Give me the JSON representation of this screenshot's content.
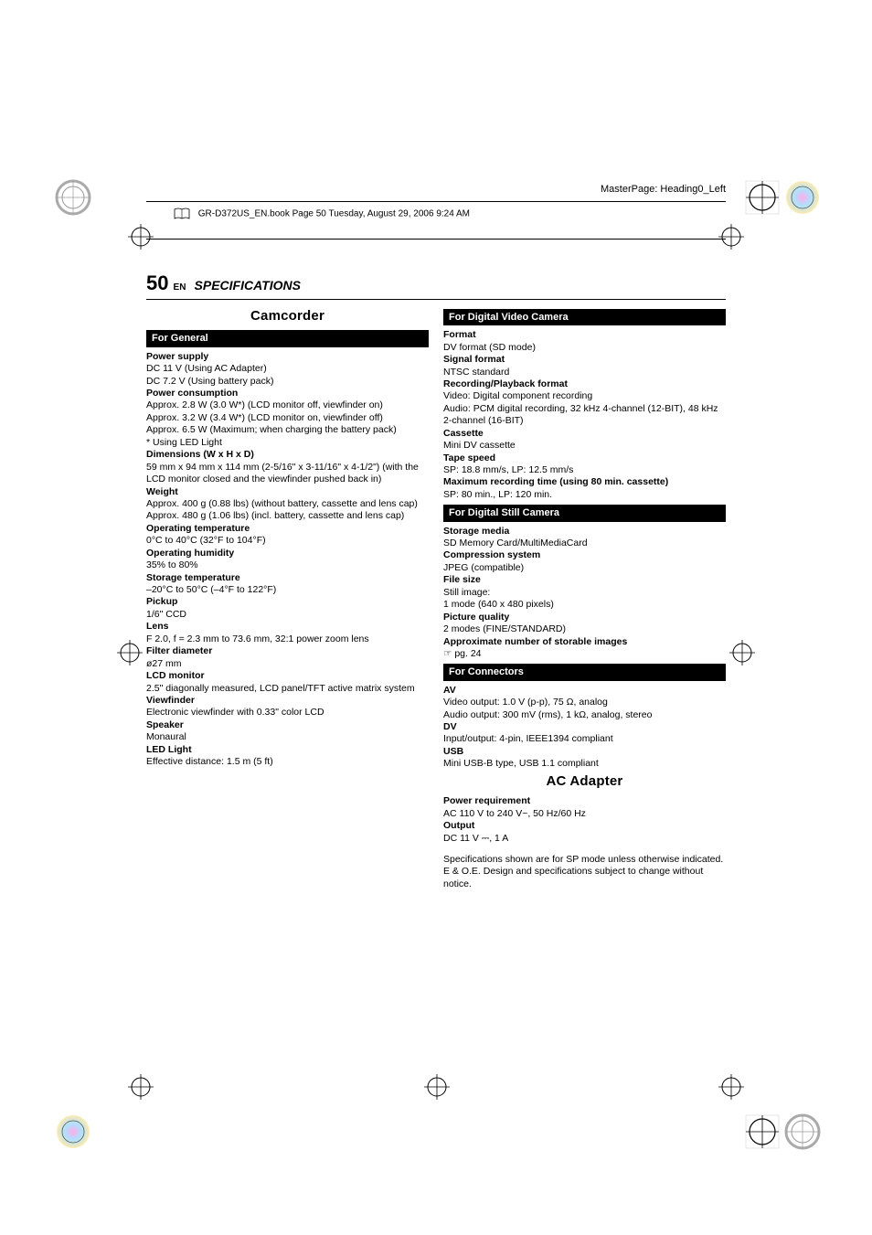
{
  "masterPage": "MasterPage: Heading0_Left",
  "bookInfo": "GR-D372US_EN.book  Page 50  Tuesday, August 29, 2006  9:24 AM",
  "pageNumber": "50",
  "pageLang": "EN",
  "pageTitle": "SPECIFICATIONS",
  "camcorder": {
    "heading": "Camcorder",
    "general": {
      "bar": "For General",
      "items": [
        {
          "label": "Power supply",
          "lines": [
            "DC 11 V (Using AC Adapter)",
            "DC 7.2 V (Using battery pack)"
          ]
        },
        {
          "label": "Power consumption",
          "lines": [
            "Approx. 2.8 W (3.0 W*) (LCD monitor off, viewfinder on)",
            "Approx. 3.2 W (3.4 W*) (LCD monitor on, viewfinder off)",
            "Approx. 6.5 W (Maximum; when charging the battery pack)",
            "*   Using LED Light"
          ]
        },
        {
          "label": "Dimensions (W x H x D)",
          "lines": [
            "59 mm x 94 mm x 114 mm (2-5/16\" x 3-11/16\" x 4-1/2\") (with the LCD monitor closed and the viewfinder pushed back in)"
          ]
        },
        {
          "label": "Weight",
          "lines": [
            "Approx. 400 g (0.88 lbs) (without battery, cassette and lens cap)",
            "Approx. 480 g (1.06 lbs) (incl. battery, cassette and lens cap)"
          ]
        },
        {
          "label": "Operating temperature",
          "lines": [
            "0°C to 40°C (32°F to 104°F)"
          ]
        },
        {
          "label": "Operating humidity",
          "lines": [
            "35% to 80%"
          ]
        },
        {
          "label": "Storage temperature",
          "lines": [
            "–20°C to 50°C (–4°F to 122°F)"
          ]
        },
        {
          "label": "Pickup",
          "lines": [
            "1/6\" CCD"
          ]
        },
        {
          "label": "Lens",
          "lines": [
            "F 2.0, f = 2.3 mm to 73.6 mm, 32:1 power zoom lens"
          ]
        },
        {
          "label": "Filter diameter",
          "lines": [
            "ø27 mm"
          ]
        },
        {
          "label": "LCD monitor",
          "lines": [
            "2.5\" diagonally measured, LCD panel/TFT active matrix system"
          ]
        },
        {
          "label": "Viewfinder",
          "lines": [
            "Electronic viewfinder with 0.33\" color LCD"
          ]
        },
        {
          "label": "Speaker",
          "lines": [
            "Monaural"
          ]
        },
        {
          "label": "LED Light",
          "lines": [
            "Effective distance: 1.5 m (5 ft)"
          ]
        }
      ]
    },
    "video": {
      "bar": "For Digital Video Camera",
      "items": [
        {
          "label": "Format",
          "lines": [
            "DV format (SD mode)"
          ]
        },
        {
          "label": "Signal format",
          "lines": [
            "NTSC standard"
          ]
        },
        {
          "label": "Recording/Playback format",
          "lines": [
            "Video: Digital component recording",
            "Audio: PCM digital recording, 32 kHz 4-channel (12-BIT), 48 kHz 2-channel (16-BIT)"
          ]
        },
        {
          "label": "Cassette",
          "lines": [
            "Mini DV cassette"
          ]
        },
        {
          "label": "Tape speed",
          "lines": [
            "SP: 18.8 mm/s, LP: 12.5 mm/s"
          ]
        },
        {
          "label": "Maximum recording time (using 80 min. cassette)",
          "lines": [
            "SP: 80 min., LP: 120 min."
          ]
        }
      ]
    },
    "still": {
      "bar": "For Digital Still Camera",
      "items": [
        {
          "label": "Storage media",
          "lines": [
            "SD Memory Card/MultiMediaCard"
          ]
        },
        {
          "label": "Compression system",
          "lines": [
            "JPEG (compatible)"
          ]
        },
        {
          "label": "File size",
          "lines": [
            "Still image:",
            "1 mode (640 x 480 pixels)"
          ]
        },
        {
          "label": "Picture quality",
          "lines": [
            "2 modes (FINE/STANDARD)"
          ]
        },
        {
          "label": "Approximate number of storable images",
          "lines": [
            "☞ pg. 24"
          ]
        }
      ]
    },
    "connectors": {
      "bar": "For Connectors",
      "items": [
        {
          "label": "AV",
          "lines": [
            "Video output: 1.0 V (p-p), 75 Ω, analog",
            "Audio output: 300 mV (rms), 1 kΩ, analog, stereo"
          ]
        },
        {
          "label": "DV",
          "lines": [
            "Input/output: 4-pin, IEEE1394 compliant"
          ]
        },
        {
          "label": "USB",
          "lines": [
            "Mini USB-B type, USB 1.1 compliant"
          ]
        }
      ]
    }
  },
  "acAdapter": {
    "heading": "AC Adapter",
    "items": [
      {
        "label": "Power requirement",
        "lines": [
          "AC 110 V to 240 V~, 50 Hz/60 Hz"
        ]
      },
      {
        "label": "Output",
        "lines": [
          "DC 11 V ⎓, 1 A"
        ]
      }
    ],
    "footnote": "Specifications shown are for SP mode unless otherwise indicated. E & O.E. Design and specifications subject to change without notice."
  }
}
